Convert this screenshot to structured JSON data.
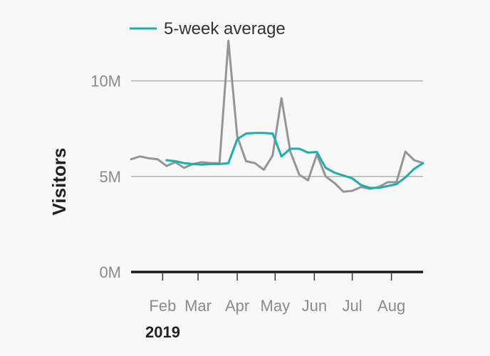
{
  "chart_data": {
    "type": "line",
    "ylabel": "Visitors",
    "xlabel": "",
    "year_label": "2019",
    "ylim": [
      0,
      12000000
    ],
    "xlim": [
      "2019-01-07",
      "2019-08-26"
    ],
    "y_ticks": [
      {
        "value": 0,
        "label": "0M"
      },
      {
        "value": 5000000,
        "label": "5M"
      },
      {
        "value": 10000000,
        "label": "10M"
      }
    ],
    "x_ticks": [
      {
        "date": "2019-02-01",
        "label": "Feb"
      },
      {
        "date": "2019-03-01",
        "label": "Mar"
      },
      {
        "date": "2019-04-01",
        "label": "Apr"
      },
      {
        "date": "2019-05-01",
        "label": "May"
      },
      {
        "date": "2019-06-01",
        "label": "Jun"
      },
      {
        "date": "2019-07-01",
        "label": "Jul"
      },
      {
        "date": "2019-08-01",
        "label": "Aug"
      }
    ],
    "grid": true,
    "legend_position": "top-left",
    "colors": {
      "weekly": "#959595",
      "average": "#1bafa9",
      "baseline": "#1a1a1a",
      "grid": "#b0b0b0"
    },
    "series": [
      {
        "key": "weekly",
        "x": [
          "2019-01-07",
          "2019-01-14",
          "2019-01-21",
          "2019-01-28",
          "2019-02-04",
          "2019-02-11",
          "2019-02-18",
          "2019-02-25",
          "2019-03-04",
          "2019-03-11",
          "2019-03-18",
          "2019-03-25",
          "2019-04-01",
          "2019-04-08",
          "2019-04-15",
          "2019-04-22",
          "2019-04-29",
          "2019-05-06",
          "2019-05-13",
          "2019-05-20",
          "2019-05-27",
          "2019-06-03",
          "2019-06-10",
          "2019-06-17",
          "2019-06-24",
          "2019-07-01",
          "2019-07-08",
          "2019-07-15",
          "2019-07-22",
          "2019-07-29",
          "2019-08-05",
          "2019-08-12",
          "2019-08-19",
          "2019-08-26"
        ],
        "values": [
          5900000,
          6050000,
          5950000,
          5900000,
          5550000,
          5750000,
          5450000,
          5650000,
          5750000,
          5700000,
          5700000,
          12100000,
          7100000,
          5800000,
          5700000,
          5350000,
          6100000,
          9100000,
          6300000,
          5100000,
          4800000,
          6150000,
          5000000,
          4650000,
          4200000,
          4250000,
          4450000,
          4350000,
          4450000,
          4700000,
          4700000,
          6300000,
          5850000,
          5700000
        ]
      },
      {
        "key": "average",
        "name": "5-week average",
        "x": [
          "2019-02-04",
          "2019-02-11",
          "2019-02-18",
          "2019-02-25",
          "2019-03-04",
          "2019-03-11",
          "2019-03-18",
          "2019-03-25",
          "2019-04-01",
          "2019-04-08",
          "2019-04-15",
          "2019-04-22",
          "2019-04-29",
          "2019-05-06",
          "2019-05-13",
          "2019-05-20",
          "2019-05-27",
          "2019-06-03",
          "2019-06-10",
          "2019-06-17",
          "2019-06-24",
          "2019-07-01",
          "2019-07-08",
          "2019-07-15",
          "2019-07-22",
          "2019-07-29",
          "2019-08-05",
          "2019-08-12",
          "2019-08-19",
          "2019-08-26"
        ],
        "values": [
          5850000,
          5800000,
          5700000,
          5650000,
          5620000,
          5650000,
          5650000,
          5700000,
          6950000,
          7250000,
          7280000,
          7280000,
          7250000,
          6050000,
          6450000,
          6450000,
          6250000,
          6280000,
          5450000,
          5200000,
          5050000,
          4900000,
          4550000,
          4400000,
          4400000,
          4500000,
          4600000,
          4950000,
          5400000,
          5700000
        ]
      }
    ]
  }
}
